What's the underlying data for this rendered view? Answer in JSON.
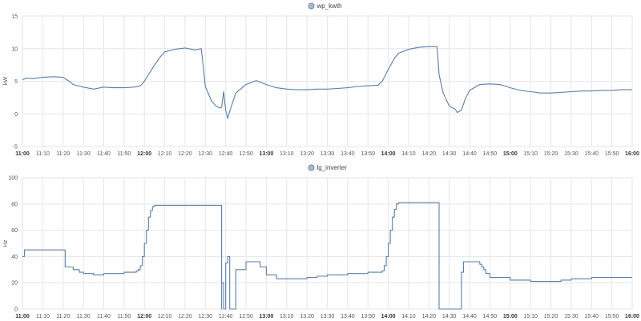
{
  "chart_data": [
    {
      "type": "line",
      "title": "",
      "xlabel": "",
      "ylabel": "kW",
      "ylim": [
        -5,
        15
      ],
      "yticks": [
        "-5",
        "0",
        "5",
        "10",
        "15"
      ],
      "xticks": [
        "11:00",
        "11:10",
        "11:20",
        "11:30",
        "11:40",
        "11:50",
        "12:00",
        "12:10",
        "12:20",
        "12:30",
        "12:40",
        "12:50",
        "13:00",
        "13:10",
        "13:20",
        "13:30",
        "13:40",
        "13:50",
        "14:00",
        "14:10",
        "14:20",
        "14:30",
        "14:40",
        "14:50",
        "15:00",
        "15:10",
        "15:20",
        "15:30",
        "15:40",
        "15:50",
        "16:00"
      ],
      "bold_ticks": [
        "11:00",
        "12:00",
        "13:00",
        "14:00",
        "15:00",
        "16:00"
      ],
      "grid": true,
      "legend": "top-center",
      "series": [
        {
          "name": "wp_kwth",
          "color": "#5a7fa8",
          "x": [
            "11:00",
            "11:02",
            "11:05",
            "11:10",
            "11:15",
            "11:20",
            "11:23",
            "11:25",
            "11:30",
            "11:35",
            "11:40",
            "11:45",
            "11:50",
            "11:55",
            "11:58",
            "12:00",
            "12:03",
            "12:05",
            "12:08",
            "12:10",
            "12:15",
            "12:20",
            "12:25",
            "12:28",
            "12:30",
            "12:33",
            "12:35",
            "12:37",
            "12:38",
            "12:39",
            "12:40",
            "12:41",
            "12:42",
            "12:45",
            "12:50",
            "12:55",
            "13:00",
            "13:05",
            "13:10",
            "13:15",
            "13:20",
            "13:25",
            "13:30",
            "13:35",
            "13:40",
            "13:45",
            "13:50",
            "13:55",
            "13:57",
            "14:00",
            "14:03",
            "14:05",
            "14:10",
            "14:15",
            "14:20",
            "14:24",
            "14:25",
            "14:27",
            "14:30",
            "14:33",
            "14:34",
            "14:36",
            "14:38",
            "14:40",
            "14:45",
            "14:50",
            "14:55",
            "15:00",
            "15:05",
            "15:10",
            "15:15",
            "15:20",
            "15:25",
            "15:30",
            "15:35",
            "15:40",
            "15:45",
            "15:50",
            "15:55",
            "16:00"
          ],
          "values": [
            5.2,
            5.5,
            5.4,
            5.6,
            5.7,
            5.6,
            5.0,
            4.5,
            4.1,
            3.8,
            4.1,
            4.0,
            4.0,
            4.1,
            4.3,
            5.0,
            6.5,
            7.5,
            8.8,
            9.5,
            9.9,
            10.1,
            9.8,
            10.0,
            4.2,
            2.0,
            1.3,
            0.9,
            1.0,
            3.4,
            0.5,
            -0.7,
            0.4,
            3.2,
            4.5,
            5.1,
            4.5,
            4.0,
            3.8,
            3.7,
            3.7,
            3.8,
            3.8,
            3.9,
            4.0,
            4.2,
            4.3,
            4.4,
            5.0,
            6.8,
            8.5,
            9.3,
            9.9,
            10.2,
            10.3,
            10.3,
            6.0,
            3.2,
            1.2,
            0.7,
            0.2,
            0.6,
            2.4,
            3.6,
            4.5,
            4.6,
            4.5,
            4.0,
            3.6,
            3.4,
            3.2,
            3.2,
            3.3,
            3.4,
            3.5,
            3.5,
            3.6,
            3.6,
            3.7,
            3.7
          ]
        }
      ]
    },
    {
      "type": "line",
      "title": "",
      "xlabel": "",
      "ylabel": "Hz",
      "ylim": [
        0,
        100
      ],
      "yticks": [
        "0",
        "20",
        "40",
        "60",
        "80",
        "100"
      ],
      "xticks": [
        "11:00",
        "11:10",
        "11:20",
        "11:30",
        "11:40",
        "11:50",
        "12:00",
        "12:10",
        "12:20",
        "12:30",
        "12:40",
        "12:50",
        "13:00",
        "13:10",
        "13:20",
        "13:30",
        "13:40",
        "13:50",
        "14:00",
        "14:10",
        "14:20",
        "14:30",
        "14:40",
        "14:50",
        "15:00",
        "15:10",
        "15:20",
        "15:30",
        "15:40",
        "15:50",
        "16:00"
      ],
      "bold_ticks": [
        "11:00",
        "12:00",
        "13:00",
        "14:00",
        "15:00",
        "16:00"
      ],
      "grid": true,
      "legend": "top-center",
      "series": [
        {
          "name": "lg_inverter",
          "color": "#5a7fa8",
          "step": true,
          "x": [
            "11:00",
            "11:01",
            "11:20",
            "11:21",
            "11:25",
            "11:26",
            "11:28",
            "11:30",
            "11:35",
            "11:40",
            "11:45",
            "11:50",
            "11:55",
            "11:56",
            "11:57",
            "11:58",
            "11:59",
            "12:00",
            "12:01",
            "12:02",
            "12:03",
            "12:04",
            "12:05",
            "12:30",
            "12:38",
            "12:38",
            "12:39",
            "12:40",
            "12:41",
            "12:42",
            "12:43",
            "12:45",
            "12:50",
            "12:55",
            "12:56",
            "12:57",
            "13:00",
            "13:05",
            "13:10",
            "13:15",
            "13:20",
            "13:25",
            "13:30",
            "13:40",
            "13:50",
            "13:55",
            "13:56",
            "13:57",
            "13:58",
            "13:59",
            "14:00",
            "14:01",
            "14:02",
            "14:03",
            "14:04",
            "14:05",
            "14:10",
            "14:15",
            "14:20",
            "14:25",
            "14:30",
            "14:35",
            "14:36",
            "14:37",
            "14:40",
            "14:45",
            "14:46",
            "14:47",
            "14:48",
            "14:50",
            "15:00",
            "15:10",
            "15:20",
            "15:25",
            "15:30",
            "15:40",
            "15:50",
            "16:00"
          ],
          "values": [
            40,
            45,
            45,
            32,
            30,
            30,
            28,
            27,
            26,
            27,
            27,
            28,
            28,
            29,
            30,
            33,
            40,
            50,
            60,
            70,
            75,
            78,
            79,
            79,
            0,
            20,
            0,
            35,
            40,
            0,
            0,
            30,
            36,
            36,
            36,
            32,
            26,
            23,
            23,
            23,
            24,
            25,
            26,
            27,
            28,
            28,
            28,
            29,
            33,
            40,
            50,
            60,
            70,
            76,
            80,
            81,
            81,
            81,
            81,
            0,
            0,
            0,
            28,
            36,
            36,
            34,
            32,
            30,
            27,
            24,
            22,
            21,
            21,
            22,
            23,
            24,
            24,
            24
          ]
        }
      ]
    }
  ]
}
